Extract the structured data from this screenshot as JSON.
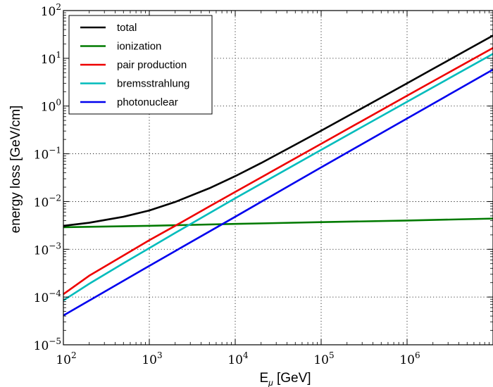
{
  "chart_data": {
    "type": "line",
    "title": "",
    "xlabel": "E",
    "xlabel_sub": "μ",
    "xlabel_unit": " [GeV]",
    "ylabel": "energy loss [GeV/cm]",
    "xscale": "log",
    "yscale": "log",
    "xlim": [
      100,
      10000000
    ],
    "ylim": [
      1e-05,
      100
    ],
    "grid": true,
    "legend_position": "top-left",
    "x_ticks": [
      {
        "base": "10",
        "exp": "2"
      },
      {
        "base": "10",
        "exp": "3"
      },
      {
        "base": "10",
        "exp": "4"
      },
      {
        "base": "10",
        "exp": "5"
      },
      {
        "base": "10",
        "exp": "6"
      }
    ],
    "y_ticks": [
      {
        "base": "10",
        "exp": "−5"
      },
      {
        "base": "10",
        "exp": "−4"
      },
      {
        "base": "10",
        "exp": "−3"
      },
      {
        "base": "10",
        "exp": "−2"
      },
      {
        "base": "10",
        "exp": "−1"
      },
      {
        "base": "10",
        "exp": "0"
      },
      {
        "base": "10",
        "exp": "1"
      },
      {
        "base": "10",
        "exp": "2"
      }
    ],
    "series": [
      {
        "name": "total",
        "color": "#000000",
        "x": [
          100,
          200,
          500,
          1000,
          2000,
          5000,
          10000,
          20000,
          50000,
          100000,
          200000,
          500000,
          1000000,
          2000000,
          5000000,
          10000000
        ],
        "y": [
          0.0031,
          0.0036,
          0.0048,
          0.0065,
          0.0098,
          0.019,
          0.034,
          0.064,
          0.155,
          0.305,
          0.605,
          1.5,
          3.0,
          6.0,
          15.0,
          30.0
        ]
      },
      {
        "name": "ionization",
        "color": "#007a00",
        "x": [
          100,
          1000,
          10000,
          100000,
          1000000,
          10000000
        ],
        "y": [
          0.0029,
          0.0031,
          0.0034,
          0.0037,
          0.004,
          0.0044
        ]
      },
      {
        "name": "pair production",
        "color": "#ee0000",
        "x": [
          100,
          200,
          500,
          1000,
          2000,
          5000,
          10000,
          100000,
          1000000,
          10000000
        ],
        "y": [
          0.000115,
          0.00028,
          0.00074,
          0.00155,
          0.0031,
          0.0079,
          0.0159,
          0.162,
          1.65,
          16.5
        ]
      },
      {
        "name": "bremsstrahlung",
        "color": "#00bcbc",
        "x": [
          100,
          200,
          500,
          1000,
          2000,
          5000,
          10000,
          100000,
          1000000,
          10000000
        ],
        "y": [
          8.5e-05,
          0.00019,
          0.00051,
          0.00106,
          0.0022,
          0.0057,
          0.0117,
          0.121,
          1.23,
          12.4
        ]
      },
      {
        "name": "photonuclear",
        "color": "#0000ee",
        "x": [
          100,
          1000,
          10000,
          100000,
          1000000,
          10000000
        ],
        "y": [
          4.1e-05,
          0.00045,
          0.0048,
          0.052,
          0.55,
          5.8
        ]
      }
    ]
  }
}
